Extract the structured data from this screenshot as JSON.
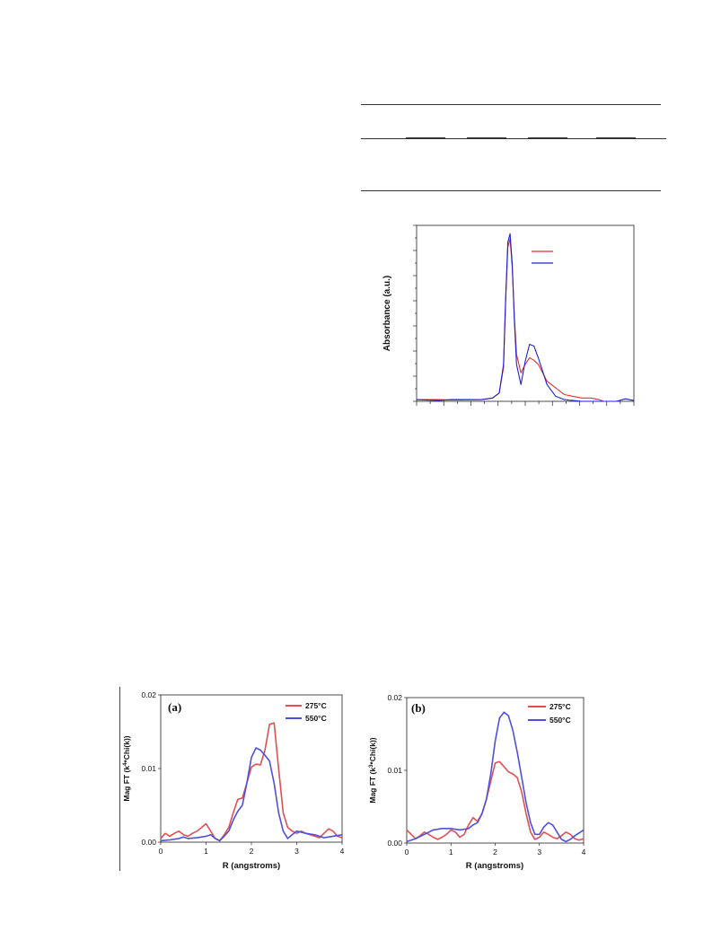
{
  "table": {
    "rule_count": 3
  },
  "chart_data": [
    {
      "type": "line",
      "ylabel": "Absorbance (a.u.)",
      "xlabel": "",
      "title": "",
      "legend_position": "top-right",
      "grid": false,
      "xlim": [
        0,
        100
      ],
      "ylim": [
        0,
        1.05
      ],
      "series": [
        {
          "color": "#e03030",
          "x": [
            0,
            10,
            16,
            30,
            35,
            38,
            40,
            41,
            42,
            43,
            44,
            45,
            46,
            48,
            50,
            52,
            54,
            56,
            58,
            60,
            64,
            68,
            72,
            76,
            80,
            84,
            86
          ],
          "y": [
            0.01,
            0.01,
            0.008,
            0.01,
            0.02,
            0.05,
            0.2,
            0.6,
            0.92,
            0.97,
            0.8,
            0.5,
            0.28,
            0.17,
            0.22,
            0.26,
            0.245,
            0.22,
            0.17,
            0.12,
            0.08,
            0.04,
            0.03,
            0.02,
            0.02,
            0.01,
            0.0
          ]
        },
        {
          "color": "#2020d0",
          "x": [
            0,
            10,
            16,
            30,
            35,
            38,
            40,
            41,
            42,
            43,
            44,
            45,
            46,
            48,
            50,
            52,
            54,
            56,
            58,
            60,
            64,
            68,
            72,
            76,
            80,
            86,
            92,
            96,
            100
          ],
          "y": [
            0.01,
            0.005,
            0.01,
            0.01,
            0.02,
            0.05,
            0.22,
            0.62,
            0.95,
            1.0,
            0.82,
            0.48,
            0.22,
            0.1,
            0.24,
            0.34,
            0.33,
            0.26,
            0.18,
            0.1,
            0.03,
            0.01,
            0.005,
            0.0,
            0.0,
            0.0,
            0.0,
            0.015,
            0.005
          ]
        }
      ]
    },
    {
      "type": "line",
      "panel_label": "(a)",
      "xlabel": "R (angstroms)",
      "ylabel": "Mag FT (k^4*Chi(k))",
      "ylabel_prefix": "Mag FT (k",
      "ylabel_sup": "4",
      "ylabel_suffix": "*Chi(k))",
      "xlim": [
        0,
        4
      ],
      "ylim": [
        0,
        0.02
      ],
      "xticks": [
        "0",
        "1",
        "2",
        "3",
        "4"
      ],
      "yticks": [
        "0.00",
        "0.01",
        "0.02"
      ],
      "legend_position": "top-right",
      "series": [
        {
          "name": "275°C",
          "color": "#e05050",
          "x": [
            0,
            0.1,
            0.2,
            0.3,
            0.4,
            0.5,
            0.6,
            0.7,
            0.8,
            0.9,
            1.0,
            1.1,
            1.2,
            1.3,
            1.4,
            1.5,
            1.6,
            1.7,
            1.8,
            1.9,
            2.0,
            2.1,
            2.2,
            2.3,
            2.4,
            2.5,
            2.6,
            2.7,
            2.8,
            2.9,
            3.0,
            3.1,
            3.2,
            3.3,
            3.4,
            3.5,
            3.6,
            3.7,
            3.8,
            3.9,
            4.0
          ],
          "y": [
            0.0005,
            0.0012,
            0.0008,
            0.0012,
            0.0015,
            0.001,
            0.0008,
            0.0012,
            0.0015,
            0.002,
            0.0025,
            0.0015,
            0.0005,
            0.0002,
            0.001,
            0.002,
            0.004,
            0.0058,
            0.006,
            0.008,
            0.0102,
            0.0106,
            0.0105,
            0.0125,
            0.016,
            0.0162,
            0.01,
            0.004,
            0.002,
            0.0015,
            0.0012,
            0.0015,
            0.0012,
            0.001,
            0.0008,
            0.0006,
            0.0012,
            0.0018,
            0.0015,
            0.0008,
            0.0006
          ]
        },
        {
          "name": "550°C",
          "color": "#5050e0",
          "x": [
            0,
            0.2,
            0.4,
            0.5,
            0.6,
            0.8,
            1.0,
            1.1,
            1.2,
            1.3,
            1.4,
            1.5,
            1.6,
            1.7,
            1.8,
            1.9,
            2.0,
            2.1,
            2.2,
            2.3,
            2.4,
            2.5,
            2.6,
            2.7,
            2.8,
            2.9,
            3.0,
            3.2,
            3.4,
            3.6,
            3.8,
            4.0
          ],
          "y": [
            0.0002,
            0.0003,
            0.0005,
            0.0007,
            0.0005,
            0.0006,
            0.0008,
            0.001,
            0.0005,
            0.0002,
            0.0008,
            0.0015,
            0.003,
            0.0042,
            0.005,
            0.008,
            0.0115,
            0.0128,
            0.0125,
            0.0118,
            0.011,
            0.008,
            0.004,
            0.0015,
            0.0005,
            0.001,
            0.0015,
            0.0012,
            0.001,
            0.0006,
            0.0008,
            0.001
          ]
        }
      ]
    },
    {
      "type": "line",
      "panel_label": "(b)",
      "xlabel": "R (angstroms)",
      "ylabel": "Mag FT (k^3*Chi(k))",
      "ylabel_prefix": "Mag FT (k",
      "ylabel_sup": "3",
      "ylabel_suffix": "*Chi(k))",
      "xlim": [
        0,
        4
      ],
      "ylim": [
        0,
        0.02
      ],
      "xticks": [
        "0",
        "1",
        "2",
        "3",
        "4"
      ],
      "yticks": [
        "0.00",
        "0.01",
        "0.02"
      ],
      "legend_position": "top-right",
      "series": [
        {
          "name": "275°C",
          "color": "#e05050",
          "x": [
            0,
            0.1,
            0.2,
            0.3,
            0.4,
            0.5,
            0.6,
            0.7,
            0.8,
            0.9,
            1.0,
            1.1,
            1.2,
            1.3,
            1.4,
            1.5,
            1.6,
            1.7,
            1.8,
            1.9,
            2.0,
            2.1,
            2.2,
            2.3,
            2.4,
            2.5,
            2.6,
            2.7,
            2.8,
            2.9,
            3.0,
            3.1,
            3.2,
            3.3,
            3.4,
            3.5,
            3.6,
            3.7,
            3.8,
            3.9,
            4.0
          ],
          "y": [
            0.0018,
            0.0012,
            0.0006,
            0.001,
            0.0015,
            0.0012,
            0.0008,
            0.0005,
            0.0008,
            0.0012,
            0.0018,
            0.0015,
            0.0008,
            0.0012,
            0.0025,
            0.0035,
            0.003,
            0.004,
            0.006,
            0.0085,
            0.011,
            0.0112,
            0.0105,
            0.0098,
            0.0095,
            0.009,
            0.007,
            0.004,
            0.0015,
            0.0005,
            0.0008,
            0.0015,
            0.0012,
            0.0008,
            0.0006,
            0.001,
            0.0015,
            0.0012,
            0.0006,
            0.0004,
            0.0006
          ]
        },
        {
          "name": "550°C",
          "color": "#5050e0",
          "x": [
            0,
            0.2,
            0.4,
            0.6,
            0.8,
            1.0,
            1.2,
            1.4,
            1.5,
            1.6,
            1.7,
            1.8,
            1.9,
            2.0,
            2.1,
            2.2,
            2.3,
            2.4,
            2.5,
            2.6,
            2.7,
            2.8,
            2.9,
            3.0,
            3.1,
            3.2,
            3.3,
            3.4,
            3.5,
            3.6,
            3.7,
            3.8,
            4.0
          ],
          "y": [
            0.0002,
            0.0006,
            0.0012,
            0.0018,
            0.002,
            0.002,
            0.0018,
            0.002,
            0.0025,
            0.0028,
            0.004,
            0.006,
            0.0095,
            0.014,
            0.0172,
            0.018,
            0.0175,
            0.0155,
            0.0125,
            0.009,
            0.0055,
            0.0028,
            0.0012,
            0.0012,
            0.0022,
            0.0028,
            0.0025,
            0.0015,
            0.0005,
            0.0002,
            0.0005,
            0.001,
            0.0018
          ]
        }
      ]
    }
  ]
}
